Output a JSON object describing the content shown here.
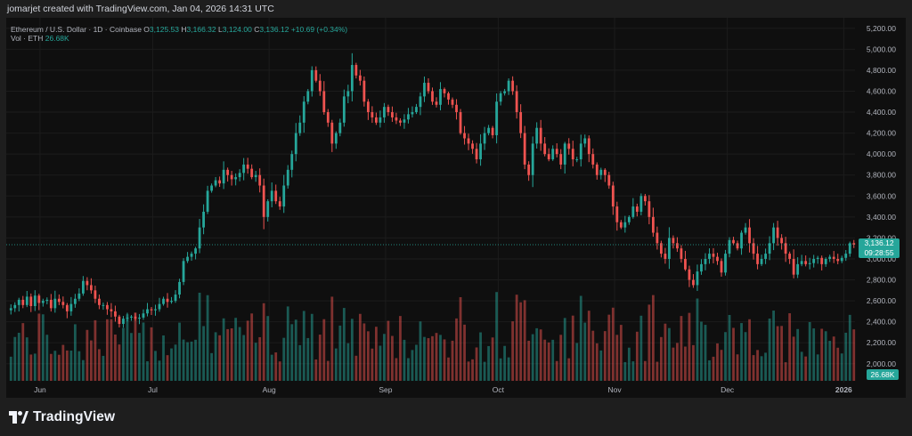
{
  "header": {
    "text": "jomarjet created with TradingView.com, Jan 04, 2026 14:31 UTC"
  },
  "legend": {
    "symbol": "Ethereum / U.S. Dollar · 1D · Coinbase",
    "open_label": "O",
    "open": "3,125.53",
    "high_label": "H",
    "high": "3,166.32",
    "low_label": "L",
    "low": "3,124.00",
    "close_label": "C",
    "close": "3,136.12",
    "change": "+10.69 (+0.34%)",
    "vol_label": "Vol · ETH",
    "vol_value": "26.68K"
  },
  "price_tag": {
    "price": "3,136.12",
    "countdown": "09:28:55"
  },
  "volume_tag": "26.68K",
  "footer": {
    "logo_text": "TradingView"
  },
  "colors": {
    "up": "#26a69a",
    "down": "#ef5350",
    "background": "#0f0f0f",
    "grid": "#1c1c1c",
    "text": "#b2b5be"
  },
  "chart_data": {
    "type": "candlestick",
    "y_axis": {
      "ticks": [
        "2,000.00",
        "2,200.00",
        "2,400.00",
        "2,600.00",
        "2,800.00",
        "3,000.00",
        "3,200.00",
        "3,400.00",
        "3,600.00",
        "3,800.00",
        "4,000.00",
        "4,200.00",
        "4,400.00",
        "4,600.00",
        "4,800.00",
        "5,000.00",
        "5,200.00"
      ],
      "tick_values": [
        2000,
        2200,
        2400,
        2600,
        2800,
        3000,
        3200,
        3400,
        3600,
        3800,
        4000,
        4200,
        4400,
        4600,
        4800,
        5000,
        5200
      ],
      "range": [
        1820,
        5300
      ]
    },
    "x_axis": {
      "labels": [
        "Jun",
        "Jul",
        "Aug",
        "Sep",
        "Oct",
        "Nov",
        "Dec",
        "2026"
      ],
      "label_dates": [
        "2025-06-01",
        "2025-07-01",
        "2025-08-01",
        "2025-09-01",
        "2025-10-01",
        "2025-11-01",
        "2025-12-01",
        "2026-01-01"
      ],
      "start_date": "2025-05-23",
      "end_date": "2026-01-04"
    },
    "closes": [
      2530,
      2560,
      2610,
      2560,
      2640,
      2550,
      2650,
      2580,
      2600,
      2610,
      2530,
      2620,
      2590,
      2560,
      2500,
      2570,
      2620,
      2670,
      2790,
      2750,
      2700,
      2620,
      2560,
      2560,
      2520,
      2500,
      2450,
      2380,
      2430,
      2440,
      2450,
      2430,
      2440,
      2480,
      2520,
      2510,
      2520,
      2570,
      2620,
      2590,
      2600,
      2660,
      2780,
      2980,
      3020,
      3050,
      3100,
      3300,
      3450,
      3650,
      3700,
      3750,
      3720,
      3850,
      3800,
      3760,
      3780,
      3820,
      3900,
      3860,
      3780,
      3800,
      3700,
      3400,
      3550,
      3650,
      3550,
      3500,
      3700,
      3850,
      4000,
      4200,
      4300,
      4500,
      4600,
      4800,
      4700,
      4600,
      4400,
      4300,
      4100,
      4200,
      4300,
      4550,
      4600,
      4850,
      4750,
      4700,
      4500,
      4400,
      4350,
      4300,
      4350,
      4450,
      4400,
      4350,
      4320,
      4300,
      4330,
      4380,
      4400,
      4450,
      4550,
      4680,
      4600,
      4500,
      4470,
      4620,
      4580,
      4520,
      4470,
      4400,
      4200,
      4150,
      4100,
      4050,
      3950,
      4100,
      4200,
      4250,
      4180,
      4500,
      4580,
      4600,
      4700,
      4600,
      4400,
      4200,
      3900,
      3800,
      4100,
      4250,
      4100,
      4000,
      3950,
      4050,
      4000,
      3900,
      4100,
      4050,
      3950,
      3950,
      4100,
      4150,
      4000,
      3900,
      3800,
      3850,
      3800,
      3700,
      3500,
      3350,
      3300,
      3350,
      3400,
      3500,
      3450,
      3600,
      3550,
      3400,
      3250,
      3150,
      3050,
      3000,
      3200,
      3150,
      3100,
      3000,
      2900,
      2800,
      2750,
      2880,
      2950,
      3000,
      3050,
      3020,
      2980,
      2870,
      3050,
      3180,
      3150,
      3100,
      3250,
      3300,
      3150,
      3050,
      2950,
      3000,
      3050,
      3150,
      3300,
      3200,
      3150,
      3050,
      3000,
      2850,
      2950,
      2980,
      2950,
      2960,
      3000,
      3010,
      2950,
      3000,
      3020,
      3000,
      2980,
      3010,
      3050,
      3150,
      3136
    ],
    "volume_range": [
      0,
      1
    ]
  }
}
